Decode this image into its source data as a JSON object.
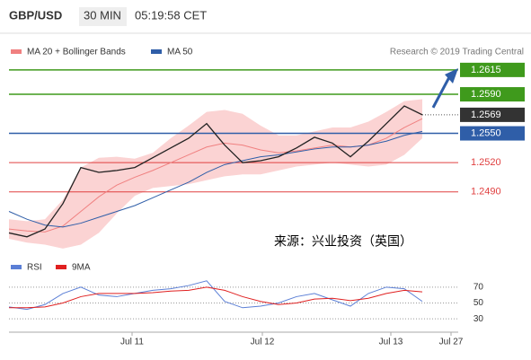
{
  "header": {
    "symbol": "GBP/USD",
    "interval": "30 MIN",
    "time": "05:19:58 CET"
  },
  "credit": "Research © 2019 Trading Central",
  "annotation": "来源：兴业投资（英国）",
  "chart_data": [
    {
      "type": "line",
      "xlim": [
        0,
        25
      ],
      "ylim": [
        1.243,
        1.2625
      ],
      "price": {
        "color": "#222222",
        "values": [
          1.2448,
          1.2444,
          1.2452,
          1.2478,
          1.2515,
          1.251,
          1.2512,
          1.2515,
          1.2525,
          1.2535,
          1.2545,
          1.256,
          1.2538,
          1.252,
          1.2522,
          1.2526,
          1.2535,
          1.2546,
          1.254,
          1.2526,
          1.2542,
          1.256,
          1.2578,
          1.2569
        ]
      },
      "series": [
        {
          "name": "MA 20 + Bollinger Bands",
          "color": "#f08080",
          "band_color": "#fbd3d3",
          "values": [
            1.2452,
            1.245,
            1.2449,
            1.2455,
            1.247,
            1.2485,
            1.2497,
            1.2505,
            1.2512,
            1.252,
            1.2528,
            1.2536,
            1.254,
            1.2538,
            1.2533,
            1.253,
            1.2532,
            1.2535,
            1.2538,
            1.2536,
            1.2538,
            1.2545,
            1.2556,
            1.2565
          ],
          "upper": [
            1.2462,
            1.246,
            1.2462,
            1.2482,
            1.2515,
            1.2525,
            1.2526,
            1.2524,
            1.253,
            1.2545,
            1.2558,
            1.2572,
            1.2574,
            1.257,
            1.2558,
            1.2548,
            1.2548,
            1.2552,
            1.2556,
            1.2556,
            1.2562,
            1.2572,
            1.2583,
            1.2585
          ],
          "lower": [
            1.2442,
            1.2438,
            1.2436,
            1.2432,
            1.2436,
            1.2448,
            1.2468,
            1.2486,
            1.2494,
            1.2496,
            1.2498,
            1.2502,
            1.2506,
            1.2508,
            1.2508,
            1.2512,
            1.2516,
            1.2518,
            1.252,
            1.2518,
            1.2516,
            1.2518,
            1.2528,
            1.2545
          ]
        },
        {
          "name": "MA 50",
          "color": "#2f5ea8",
          "values": [
            1.247,
            1.2462,
            1.2456,
            1.2454,
            1.2458,
            1.2464,
            1.247,
            1.2476,
            1.2484,
            1.2492,
            1.25,
            1.251,
            1.2518,
            1.2522,
            1.2526,
            1.2528,
            1.2531,
            1.2534,
            1.2536,
            1.2536,
            1.2538,
            1.2542,
            1.2548,
            1.2552
          ]
        }
      ],
      "levels": [
        {
          "value": 1.2615,
          "label": "1.2615",
          "color": "#3f9a1c",
          "style": "box"
        },
        {
          "value": 1.259,
          "label": "1.2590",
          "color": "#3f9a1c",
          "style": "box"
        },
        {
          "value": 1.2569,
          "label": "1.2569",
          "color": "#333333",
          "style": "current"
        },
        {
          "value": 1.255,
          "label": "1.2550",
          "color": "#2f5ea8",
          "style": "box"
        },
        {
          "value": 1.252,
          "label": "1.2520",
          "color": "#e04040",
          "style": "text"
        },
        {
          "value": 1.249,
          "label": "1.2490",
          "color": "#e04040",
          "style": "text"
        }
      ]
    },
    {
      "type": "line",
      "xlim": [
        0,
        25
      ],
      "ylim": [
        20,
        80
      ],
      "yticks": [
        30,
        50,
        70
      ],
      "xticks": [
        {
          "value": 6.85,
          "label": "Jul 11"
        },
        {
          "value": 14.1,
          "label": "Jul 12"
        },
        {
          "value": 21.25,
          "label": "Jul 13"
        },
        {
          "value": 24.6,
          "label": "Jul 27"
        }
      ],
      "series": [
        {
          "name": "RSI",
          "color": "#5b7fd6",
          "values": [
            45,
            42,
            48,
            62,
            70,
            60,
            58,
            62,
            66,
            68,
            72,
            78,
            52,
            44,
            46,
            50,
            58,
            62,
            54,
            46,
            62,
            70,
            68,
            52
          ]
        },
        {
          "name": "9MA",
          "color": "#e02020",
          "values": [
            44,
            44,
            45,
            50,
            58,
            62,
            62,
            62,
            63,
            65,
            66,
            70,
            66,
            58,
            52,
            48,
            50,
            55,
            56,
            53,
            56,
            62,
            66,
            64
          ]
        }
      ]
    }
  ]
}
